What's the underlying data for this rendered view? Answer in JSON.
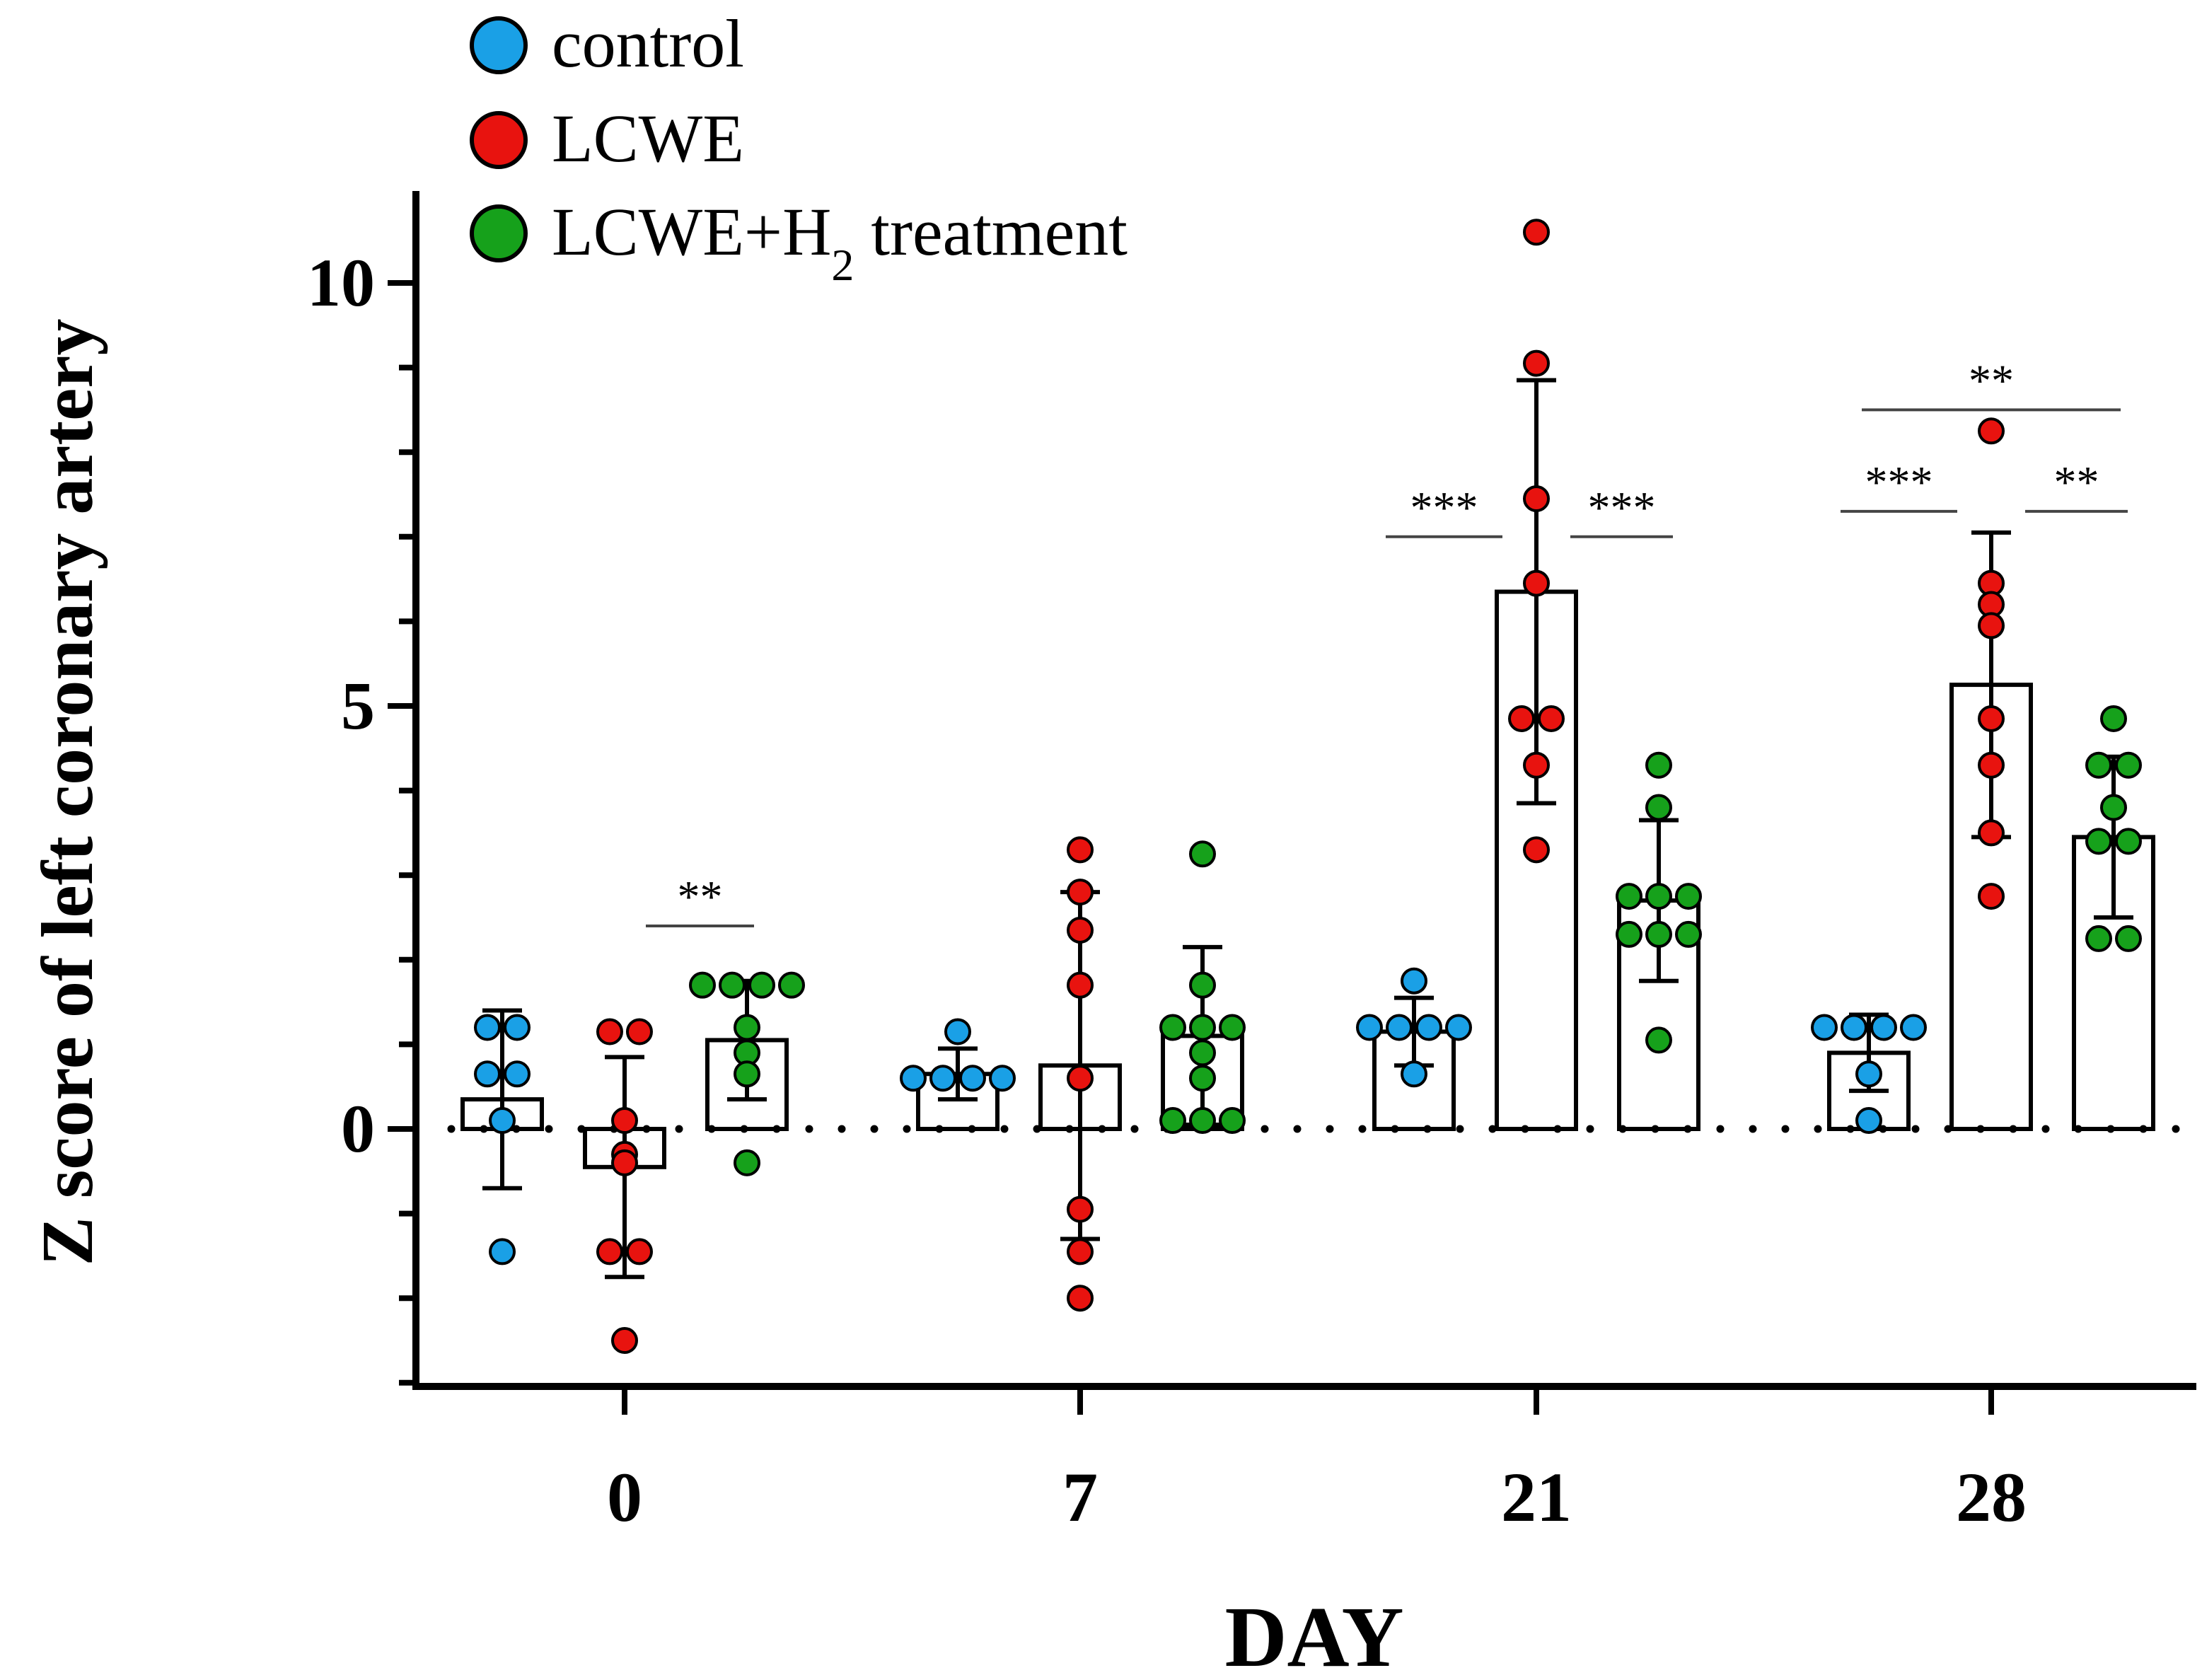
{
  "chart_data": {
    "type": "bar",
    "title": "",
    "xlabel": "DAY",
    "ylabel": "Z score of left coronary artery",
    "ylim": [
      -3,
      11
    ],
    "yticks_major": [
      0,
      5,
      10
    ],
    "yticks_minor_step": 1,
    "categories": [
      "0",
      "7",
      "21",
      "28"
    ],
    "legend_position": "top-left",
    "zero_line": "dotted",
    "series": [
      {
        "name": "control",
        "color": "#1aa0e6",
        "means": [
          0.35,
          0.65,
          1.15,
          0.9
        ],
        "sd": [
          1.05,
          0.3,
          0.4,
          0.45
        ],
        "points": [
          [
            1.2,
            1.2,
            0.65,
            0.65,
            0.1,
            -1.45
          ],
          [
            1.15,
            0.6,
            0.6,
            0.6,
            0.6
          ],
          [
            1.75,
            1.2,
            1.2,
            1.2,
            1.2,
            0.65
          ],
          [
            1.2,
            1.2,
            1.2,
            1.2,
            0.65,
            0.1
          ]
        ]
      },
      {
        "name": "LCWE",
        "color": "#e8130f",
        "means": [
          -0.45,
          0.75,
          6.35,
          5.25
        ],
        "sd": [
          1.3,
          2.05,
          2.5,
          1.8
        ],
        "points": [
          [
            1.15,
            1.15,
            0.1,
            -0.3,
            -0.4,
            -1.45,
            -1.45,
            -2.5
          ],
          [
            3.3,
            2.8,
            2.35,
            1.7,
            0.6,
            -0.95,
            -1.45,
            -2.0
          ],
          [
            10.6,
            9.05,
            7.45,
            6.45,
            4.85,
            4.85,
            4.3,
            3.3
          ],
          [
            8.25,
            6.45,
            6.2,
            5.95,
            4.85,
            4.3,
            3.5,
            2.75
          ]
        ]
      },
      {
        "name": "LCWE+H2 treatment",
        "color": "#16a11b",
        "means": [
          1.05,
          1.1,
          2.7,
          3.45
        ],
        "sd": [
          0.7,
          1.05,
          0.95,
          0.95
        ],
        "points": [
          [
            1.7,
            1.7,
            1.7,
            1.7,
            1.2,
            0.9,
            0.65,
            -0.4
          ],
          [
            3.25,
            1.7,
            1.2,
            1.2,
            1.2,
            0.9,
            0.6,
            0.1,
            0.1,
            0.1
          ],
          [
            4.3,
            3.8,
            2.75,
            2.75,
            2.75,
            2.3,
            2.3,
            2.3,
            1.05
          ],
          [
            4.85,
            4.3,
            4.3,
            3.8,
            3.4,
            3.4,
            2.25,
            2.25
          ]
        ]
      }
    ],
    "significance": [
      {
        "day": "0",
        "from": "LCWE",
        "to": "LCWE+H2 treatment",
        "label": "**",
        "y": 2.4
      },
      {
        "day": "21",
        "from": "control",
        "to": "LCWE",
        "label": "***",
        "y": 7.0
      },
      {
        "day": "21",
        "from": "LCWE",
        "to": "LCWE+H2 treatment",
        "label": "***",
        "y": 7.0
      },
      {
        "day": "28",
        "from": "control",
        "to": "LCWE",
        "label": "***",
        "y": 7.3
      },
      {
        "day": "28",
        "from": "LCWE",
        "to": "LCWE+H2 treatment",
        "label": "**",
        "y": 7.3
      },
      {
        "day": "28",
        "from": "control",
        "to": "LCWE+H2 treatment",
        "label": "**",
        "y": 8.5
      }
    ]
  },
  "legend": {
    "items": [
      {
        "label": "control",
        "color": "#1aa0e6"
      },
      {
        "label": "LCWE",
        "color": "#e8130f"
      },
      {
        "label": "LCWE+H",
        "sub": "2",
        "suffix": " treatment",
        "color": "#16a11b"
      }
    ]
  }
}
